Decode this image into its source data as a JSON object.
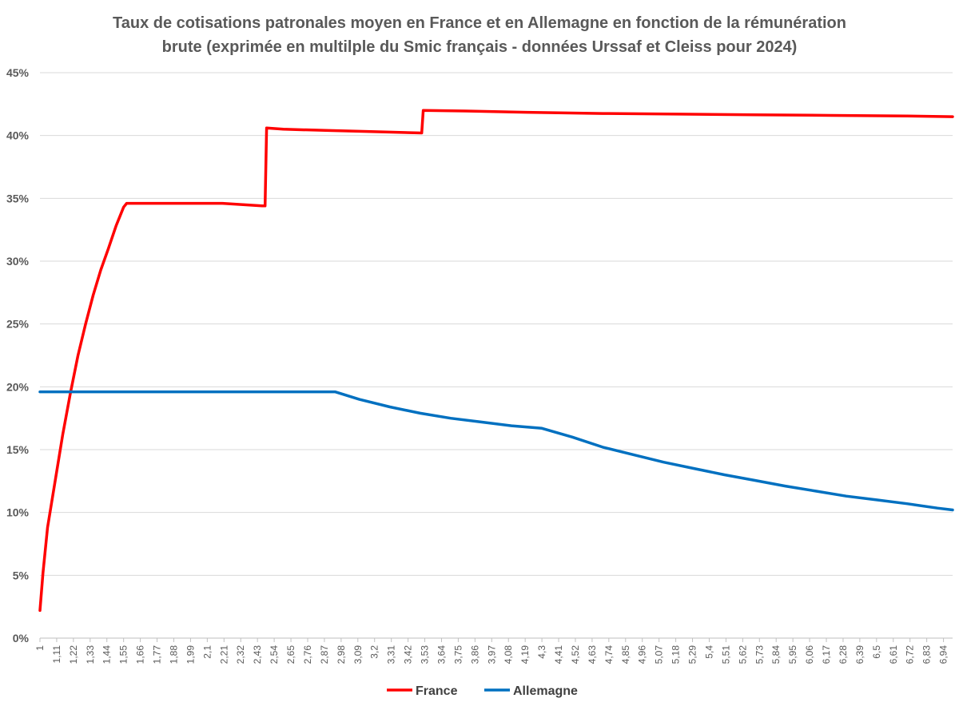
{
  "chart_data": {
    "type": "line",
    "title_lines": [
      "Taux de cotisations patronales moyen en France et en Allemagne en fonction de la rémunération",
      "brute (exprimée en multilple du Smic français - données Urssaf et Cleiss pour 2024)"
    ],
    "xlabel": "",
    "ylabel": "",
    "xlim": [
      1,
      7
    ],
    "ylim": [
      0,
      45
    ],
    "grid": true,
    "legend_position": "bottom",
    "y_ticks": [
      "0%",
      "5%",
      "10%",
      "15%",
      "20%",
      "25%",
      "30%",
      "35%",
      "40%",
      "45%"
    ],
    "x_ticks": [
      "1",
      "1,11",
      "1,22",
      "1,33",
      "1,44",
      "1,55",
      "1,66",
      "1,77",
      "1,88",
      "1,99",
      "2,1",
      "2,21",
      "2,32",
      "2,43",
      "2,54",
      "2,65",
      "2,76",
      "2,87",
      "2,98",
      "3,09",
      "3,2",
      "3,31",
      "3,42",
      "3,53",
      "3,64",
      "3,75",
      "3,86",
      "3,97",
      "4,08",
      "4,19",
      "4,3",
      "4,41",
      "4,52",
      "4,63",
      "4,74",
      "4,85",
      "4,96",
      "5,07",
      "5,18",
      "5,29",
      "5,4",
      "5,51",
      "5,62",
      "5,73",
      "5,84",
      "5,95",
      "6,06",
      "6,17",
      "6,28",
      "6,39",
      "6,5",
      "6,61",
      "6,72",
      "6,83",
      "6,94"
    ],
    "series": [
      {
        "name": "France",
        "color": "#FF0000",
        "points": [
          [
            1.0,
            2.2
          ],
          [
            1.02,
            5.2
          ],
          [
            1.05,
            8.8
          ],
          [
            1.1,
            12.5
          ],
          [
            1.15,
            16.2
          ],
          [
            1.2,
            19.5
          ],
          [
            1.25,
            22.5
          ],
          [
            1.3,
            25.0
          ],
          [
            1.35,
            27.3
          ],
          [
            1.4,
            29.3
          ],
          [
            1.45,
            31.0
          ],
          [
            1.5,
            32.8
          ],
          [
            1.55,
            34.3
          ],
          [
            1.57,
            34.6
          ],
          [
            2.2,
            34.6
          ],
          [
            2.46,
            34.4
          ],
          [
            2.48,
            34.4
          ],
          [
            2.49,
            40.6
          ],
          [
            2.6,
            40.5
          ],
          [
            2.9,
            40.4
          ],
          [
            3.2,
            40.3
          ],
          [
            3.51,
            40.2
          ],
          [
            3.52,
            42.0
          ],
          [
            3.8,
            41.95
          ],
          [
            4.2,
            41.85
          ],
          [
            4.7,
            41.75
          ],
          [
            5.2,
            41.7
          ],
          [
            5.7,
            41.65
          ],
          [
            6.2,
            41.6
          ],
          [
            6.7,
            41.55
          ],
          [
            7.0,
            41.5
          ]
        ]
      },
      {
        "name": "Allemagne",
        "color": "#0070C0",
        "points": [
          [
            1.0,
            19.6
          ],
          [
            2.94,
            19.6
          ],
          [
            3.1,
            19.0
          ],
          [
            3.3,
            18.4
          ],
          [
            3.5,
            17.9
          ],
          [
            3.7,
            17.5
          ],
          [
            3.9,
            17.2
          ],
          [
            4.1,
            16.9
          ],
          [
            4.3,
            16.7
          ],
          [
            4.5,
            16.0
          ],
          [
            4.7,
            15.2
          ],
          [
            4.9,
            14.6
          ],
          [
            5.1,
            14.0
          ],
          [
            5.3,
            13.5
          ],
          [
            5.5,
            13.0
          ],
          [
            5.7,
            12.55
          ],
          [
            5.9,
            12.1
          ],
          [
            6.1,
            11.7
          ],
          [
            6.3,
            11.3
          ],
          [
            6.5,
            11.0
          ],
          [
            6.7,
            10.7
          ],
          [
            6.9,
            10.35
          ],
          [
            7.0,
            10.2
          ]
        ]
      }
    ]
  }
}
